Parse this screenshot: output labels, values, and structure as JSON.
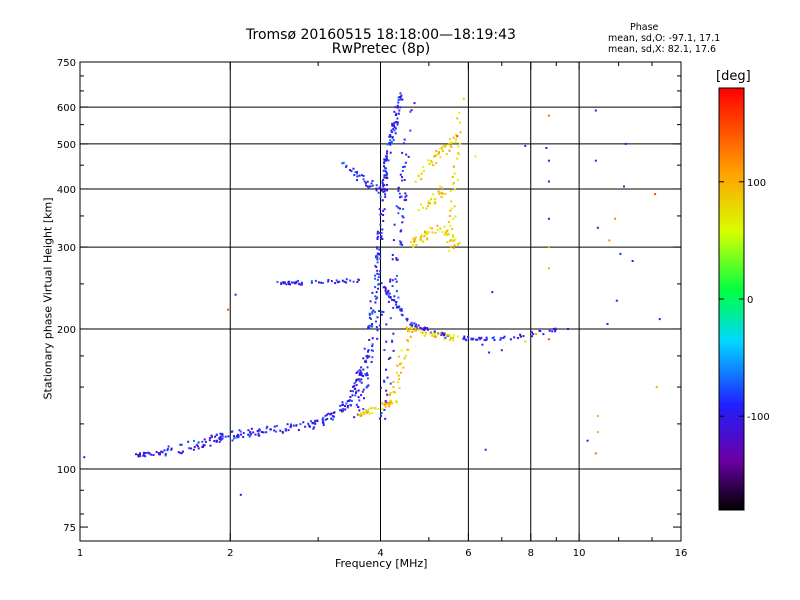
{
  "chart_data": {
    "type": "scatter",
    "title": "Tromsø 20160515 18:18:00—18:19:43",
    "subtitle": "RwPretec (8p)",
    "xlabel": "Frequency [MHz]",
    "ylabel": "Stationary phase Virtual Height [km]",
    "x_scale": "log",
    "y_scale": "log",
    "xlim": [
      1,
      16
    ],
    "ylim": [
      70,
      750
    ],
    "x_ticks": [
      1,
      2,
      4,
      6,
      8,
      10,
      16
    ],
    "x_tick_labels": [
      "1",
      "2",
      "4",
      "6",
      "8",
      "10",
      "16"
    ],
    "y_ticks": [
      75,
      100,
      200,
      300,
      400,
      500,
      600,
      750
    ],
    "y_tick_labels": [
      "75",
      "100",
      "200",
      "300",
      "400",
      "500",
      "600",
      "750"
    ],
    "grid": true,
    "stats": {
      "heading": "Phase",
      "line_o": "mean, sd,O: -97.1, 17.1",
      "line_x": "mean, sd,X:  82.1, 17.6"
    },
    "colorbar": {
      "label": "[deg]",
      "range": [
        -180,
        180
      ],
      "ticks": [
        100,
        0,
        -100
      ],
      "tick_labels": [
        "100",
        "0",
        "-100"
      ]
    },
    "series": [
      {
        "color_phase": -97,
        "segments": [
          {
            "from": [
              1.3,
              107
            ],
            "to": [
              1.45,
              108
            ],
            "n": 25,
            "spread": 0.02
          },
          {
            "from": [
              1.45,
              108
            ],
            "to": [
              2.0,
              118
            ],
            "n": 60,
            "spread": 0.05
          },
          {
            "from": [
              2.0,
              118
            ],
            "to": [
              3.0,
              125
            ],
            "n": 80,
            "spread": 0.04
          },
          {
            "from": [
              3.0,
              125
            ],
            "to": [
              3.5,
              140
            ],
            "n": 40,
            "spread": 0.05
          },
          {
            "from": [
              3.5,
              140
            ],
            "to": [
              3.8,
              180
            ],
            "n": 45,
            "spread": 0.06
          },
          {
            "from": [
              3.8,
              180
            ],
            "to": [
              3.95,
              280
            ],
            "n": 45,
            "spread": 0.05
          },
          {
            "from": [
              3.95,
              280
            ],
            "to": [
              4.1,
              450
            ],
            "n": 60,
            "spread": 0.04
          },
          {
            "from": [
              4.1,
              450
            ],
            "to": [
              4.4,
              640
            ],
            "n": 70,
            "spread": 0.04
          },
          {
            "from": [
              3.35,
              450
            ],
            "to": [
              4.1,
              390
            ],
            "n": 40,
            "spread": 0.04
          },
          {
            "from": [
              2.45,
              250
            ],
            "to": [
              3.7,
              255
            ],
            "n": 45,
            "spread": 0.02
          },
          {
            "from": [
              4.0,
              250
            ],
            "to": [
              4.6,
              205
            ],
            "n": 35,
            "spread": 0.02
          },
          {
            "from": [
              4.6,
              205
            ],
            "to": [
              5.5,
              192
            ],
            "n": 30,
            "spread": 0.02
          },
          {
            "from": [
              5.8,
              191
            ],
            "to": [
              7.0,
              190
            ],
            "n": 25,
            "spread": 0.02
          },
          {
            "from": [
              7.0,
              190
            ],
            "to": [
              9.2,
              200
            ],
            "n": 20,
            "spread": 0.02
          },
          {
            "from": [
              4.0,
              120
            ],
            "to": [
              4.6,
              600
            ],
            "n": 90,
            "spread": 0.08
          },
          {
            "from": [
              3.6,
              130
            ],
            "to": [
              4.0,
              220
            ],
            "n": 40,
            "spread": 0.06
          }
        ]
      },
      {
        "color_phase": 82,
        "segments": [
          {
            "from": [
              3.6,
              130
            ],
            "to": [
              4.3,
              140
            ],
            "n": 40,
            "spread": 0.03
          },
          {
            "from": [
              4.2,
              140
            ],
            "to": [
              4.6,
              200
            ],
            "n": 30,
            "spread": 0.06
          },
          {
            "from": [
              4.5,
              200
            ],
            "to": [
              5.7,
              190
            ],
            "n": 35,
            "spread": 0.03
          },
          {
            "from": [
              4.6,
              300
            ],
            "to": [
              5.2,
              330
            ],
            "n": 30,
            "spread": 0.05
          },
          {
            "from": [
              5.2,
              330
            ],
            "to": [
              5.8,
              300
            ],
            "n": 25,
            "spread": 0.05
          },
          {
            "from": [
              4.7,
              420
            ],
            "to": [
              5.7,
              520
            ],
            "n": 40,
            "spread": 0.06
          },
          {
            "from": [
              5.5,
              300
            ],
            "to": [
              5.8,
              620
            ],
            "n": 35,
            "spread": 0.05
          },
          {
            "from": [
              4.8,
              360
            ],
            "to": [
              5.4,
              400
            ],
            "n": 25,
            "spread": 0.05
          }
        ]
      }
    ],
    "isolated_points": [
      [
        1.02,
        106,
        -100
      ],
      [
        2.1,
        88,
        -100
      ],
      [
        2.05,
        237,
        -95
      ],
      [
        1.98,
        220,
        150
      ],
      [
        8.7,
        575,
        130
      ],
      [
        10.8,
        590,
        -100
      ],
      [
        8.6,
        490,
        -110
      ],
      [
        8.7,
        460,
        -100
      ],
      [
        8.7,
        415,
        -100
      ],
      [
        8.7,
        345,
        -100
      ],
      [
        8.7,
        300,
        100
      ],
      [
        8.7,
        270,
        100
      ],
      [
        10.8,
        460,
        -100
      ],
      [
        10.9,
        330,
        -110
      ],
      [
        11.5,
        310,
        120
      ],
      [
        11.8,
        345,
        120
      ],
      [
        12.3,
        405,
        -110
      ],
      [
        12.4,
        500,
        -100
      ],
      [
        12.1,
        290,
        -100
      ],
      [
        11.9,
        230,
        -100
      ],
      [
        12.8,
        280,
        -100
      ],
      [
        14.2,
        390,
        150
      ],
      [
        14.5,
        210,
        -100
      ],
      [
        11.4,
        205,
        -100
      ],
      [
        14.3,
        150,
        100
      ],
      [
        10.4,
        115,
        -100
      ],
      [
        10.9,
        130,
        100
      ],
      [
        10.9,
        120,
        100
      ],
      [
        10.8,
        108,
        130
      ],
      [
        6.5,
        110,
        -100
      ],
      [
        6.4,
        185,
        -100
      ],
      [
        6.6,
        178,
        -90
      ],
      [
        7.0,
        180,
        -100
      ],
      [
        6.7,
        240,
        -100
      ],
      [
        7.8,
        495,
        -100
      ],
      [
        6.2,
        470,
        60
      ],
      [
        5.7,
        520,
        140
      ],
      [
        7.3,
        190,
        -100
      ],
      [
        7.8,
        188,
        80
      ],
      [
        8.2,
        195,
        100
      ],
      [
        8.7,
        190,
        150
      ],
      [
        8.9,
        200,
        -100
      ],
      [
        9.5,
        200,
        -110
      ]
    ]
  }
}
